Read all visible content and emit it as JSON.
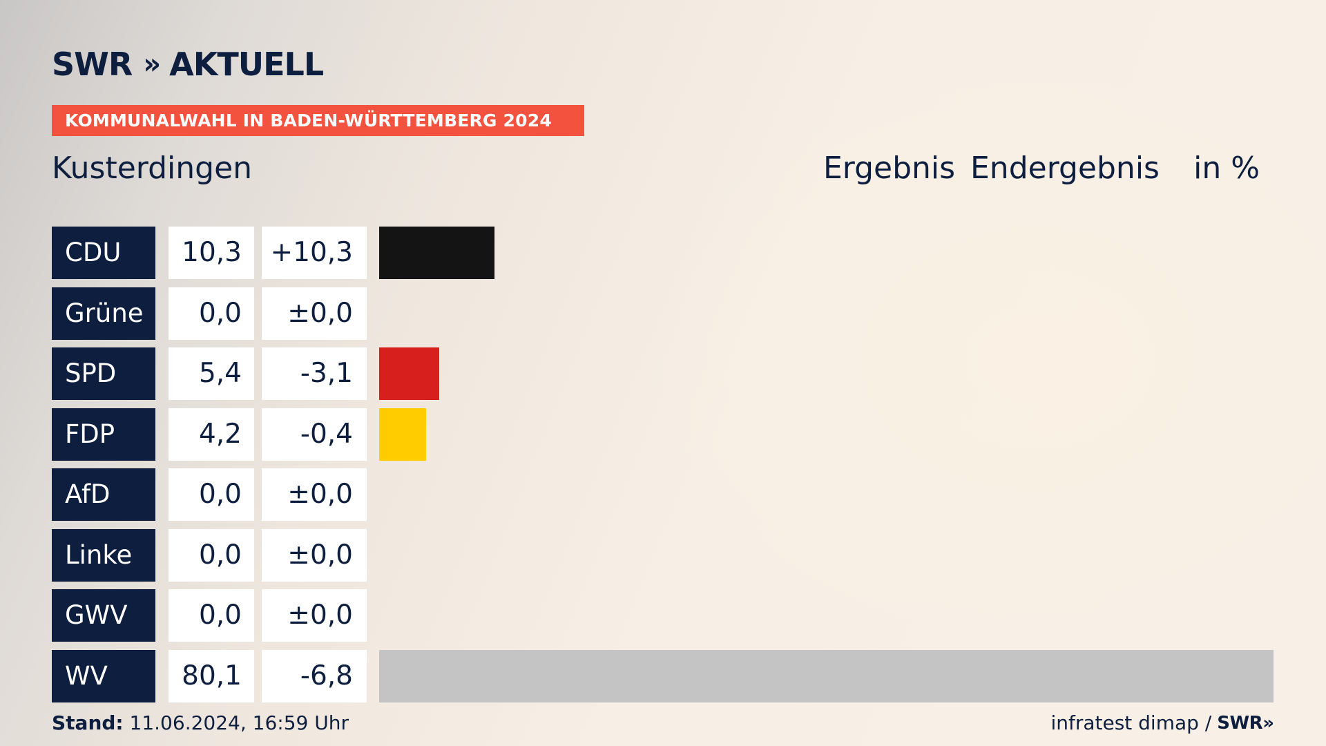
{
  "header": {
    "logo_text": "SWR",
    "logo_chevrons": "»",
    "logo_suffix": "AKTUELL",
    "banner": "KOMMUNALWAHL IN BADEN-WÜRTTEMBERG 2024"
  },
  "place": "Kusterdingen",
  "columns": {
    "result": "Ergebnis",
    "status": "Endergebnis",
    "unit": "in %"
  },
  "colors": {
    "navy": "#0e1e3e",
    "banner": "#f3523e"
  },
  "chart_data": {
    "type": "bar",
    "orientation": "horizontal",
    "title": "KOMMUNALWAHL IN BADEN-WÜRTTEMBERG 2024",
    "subtitle": "Kusterdingen",
    "unit": "in %",
    "xlim": [
      0,
      80.1
    ],
    "categories": [
      "CDU",
      "Grüne",
      "SPD",
      "FDP",
      "AfD",
      "Linke",
      "GWV",
      "WV"
    ],
    "values": [
      10.3,
      0.0,
      5.4,
      4.2,
      0.0,
      0.0,
      0.0,
      80.1
    ],
    "value_labels": [
      "10,3",
      "0,0",
      "5,4",
      "4,2",
      "0,0",
      "0,0",
      "0,0",
      "80,1"
    ],
    "changes": [
      10.3,
      0.0,
      -3.1,
      -0.4,
      0.0,
      0.0,
      0.0,
      -6.8
    ],
    "change_labels": [
      "+10,3",
      "±0,0",
      "-3,1",
      "-0,4",
      "±0,0",
      "±0,0",
      "±0,0",
      "-6,8"
    ],
    "bar_colors": [
      "#141414",
      "#46962b",
      "#d7201d",
      "#ffcc00",
      "#0489db",
      "#be3075",
      "#8a8a8a",
      "#c4c4c4"
    ]
  },
  "footer": {
    "stand_label": "Stand:",
    "stand_value": "11.06.2024, 16:59 Uhr",
    "source": "infratest dimap /",
    "source_logo": "SWR",
    "source_chevrons": "»"
  }
}
